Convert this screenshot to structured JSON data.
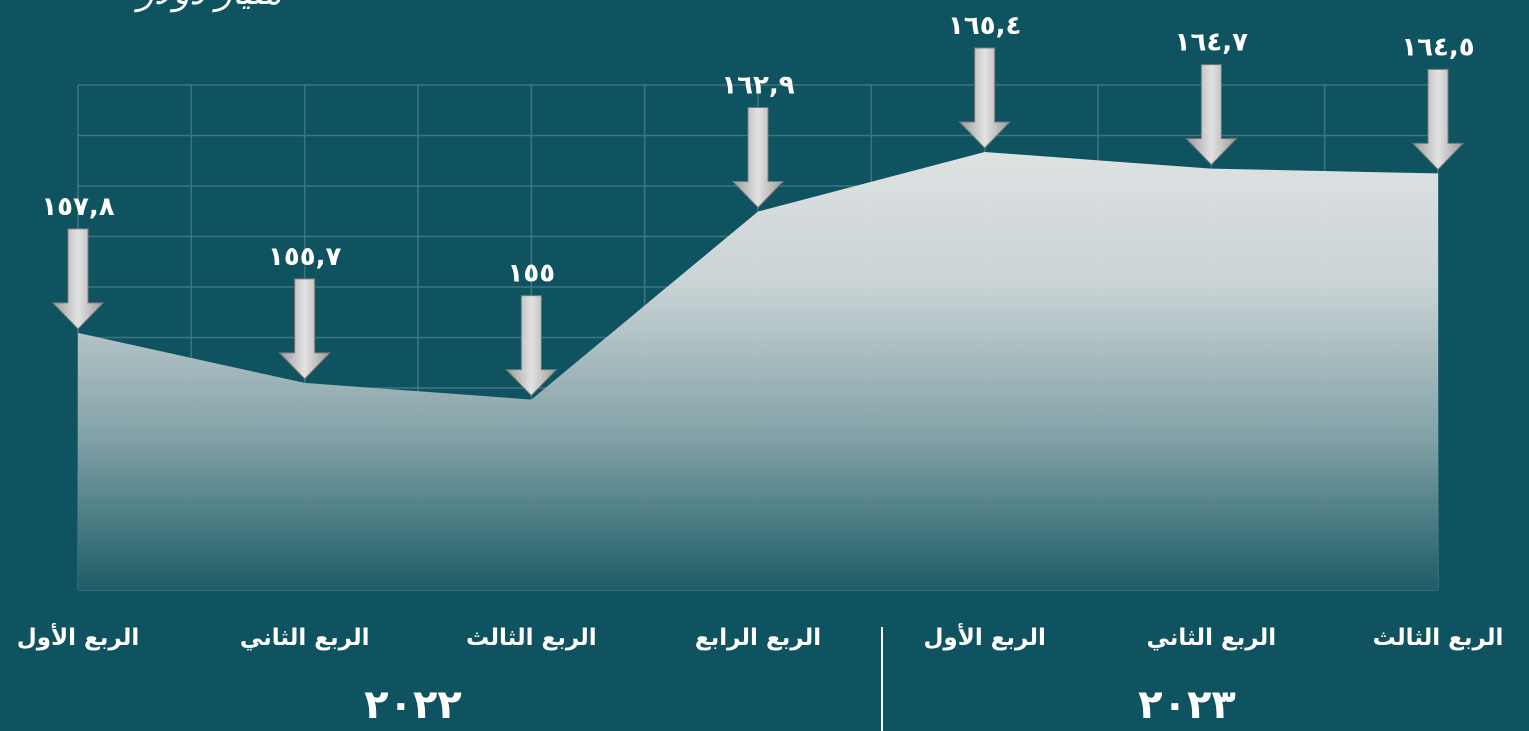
{
  "chart_data": {
    "type": "area",
    "unit_label": "مليار دولار",
    "categories": [
      "الربع الأول",
      "الربع الثاني",
      "الربع الثالث",
      "الربع الرابع",
      "الربع الأول",
      "الربع الثاني",
      "الربع الثالث"
    ],
    "values": [
      157.8,
      155.7,
      155,
      162.9,
      165.4,
      164.7,
      164.5
    ],
    "data_labels": [
      "١٥٧,٨",
      "١٥٥,٧",
      "١٥٥",
      "١٦٢,٩",
      "١٦٥,٤",
      "١٦٤,٧",
      "١٦٤,٥"
    ],
    "year_groups": [
      {
        "label": "٢٠٢٢",
        "category_count": 4
      },
      {
        "label": "٢٠٢٣",
        "category_count": 3
      }
    ],
    "ylim": [
      147,
      165.4
    ],
    "grid": true,
    "colors": {
      "background": "#0f5360",
      "area_top": "#e6e6e6",
      "area_bottom": "#1e5d66",
      "grid": "#3d7580",
      "arrow": "#c8c8c8",
      "text": "#ffffff"
    }
  }
}
